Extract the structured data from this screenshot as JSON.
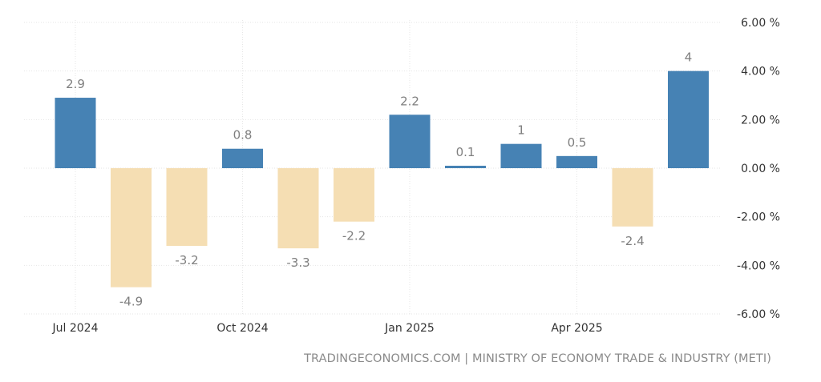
{
  "chart_data": {
    "type": "bar",
    "unit_suffix": " %",
    "values": [
      2.9,
      -4.9,
      -3.2,
      0.8,
      -3.3,
      -2.2,
      2.2,
      0.1,
      1,
      0.5,
      -2.4,
      4
    ],
    "data_labels": [
      "2.9",
      "-4.9",
      "-3.2",
      "0.8",
      "-3.3",
      "-2.2",
      "2.2",
      "0.1",
      "1",
      "0.5",
      "-2.4",
      "4"
    ],
    "x_tick_labels": [
      "Jul 2024",
      "Oct 2024",
      "Jan 2025",
      "Apr 2025"
    ],
    "x_tick_bar_index": [
      0,
      3,
      6,
      9
    ],
    "y_ticks": [
      6,
      4,
      2,
      0,
      -2,
      -4,
      -6
    ],
    "y_tick_labels": [
      "6.00 %",
      "4.00 %",
      "2.00 %",
      "0.00 %",
      "-2.00 %",
      "-4.00 %",
      "-6.00 %"
    ],
    "ylim": [
      -6,
      6
    ],
    "grid": true,
    "colors": {
      "positive": "#4682b4",
      "negative": "#f5deb3",
      "grid": "#e6e6e6",
      "text": "#555555",
      "label": "#7f7f7f"
    }
  },
  "footer": {
    "source": "TRADINGECONOMICS.COM | MINISTRY OF ECONOMY TRADE & INDUSTRY (METI)"
  }
}
